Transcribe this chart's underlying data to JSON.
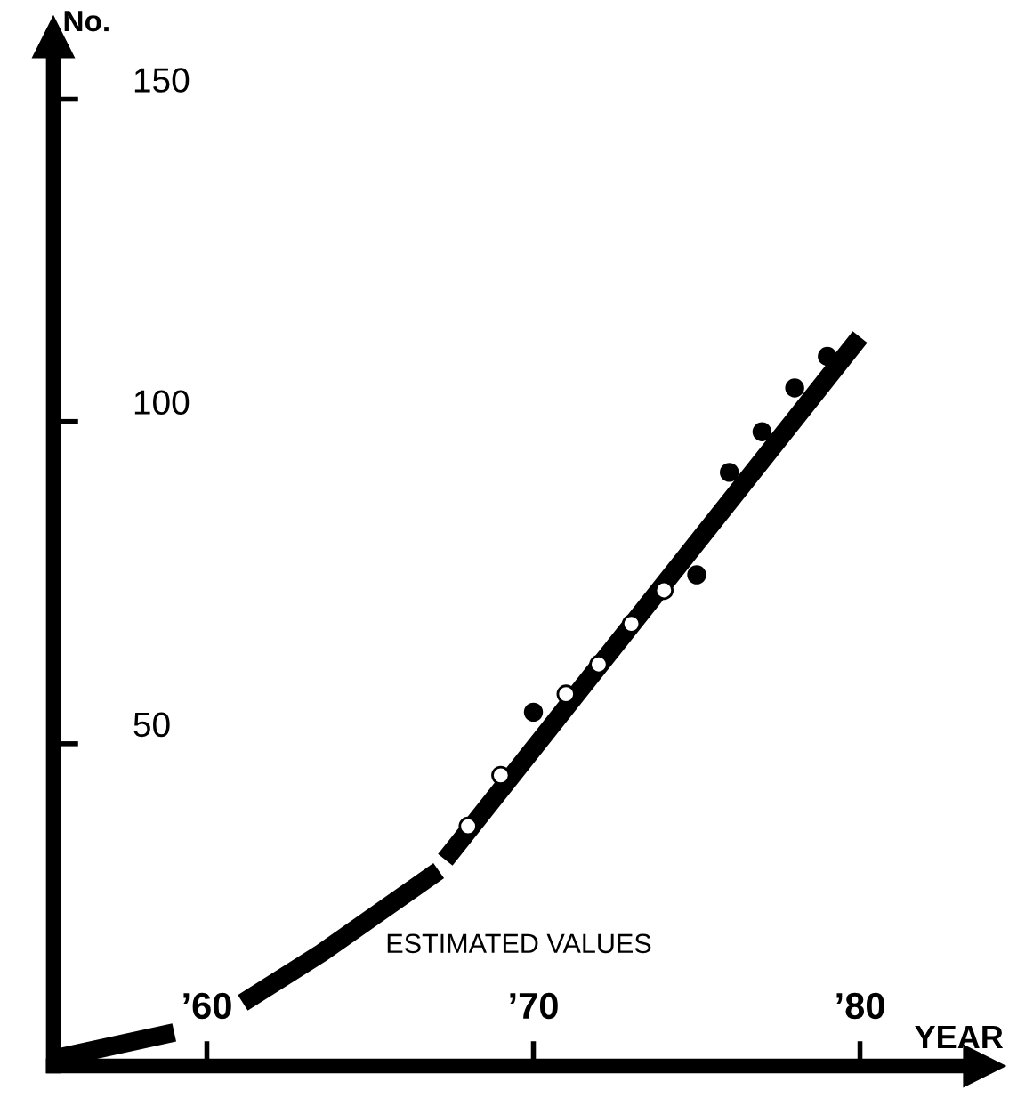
{
  "chart_data": {
    "type": "line",
    "xlabel": "YEAR",
    "ylabel": "No.",
    "xlim": [
      55.3,
      83.8
    ],
    "ylim": [
      0,
      159.6
    ],
    "xticks": [
      {
        "value": 60,
        "label": "’60"
      },
      {
        "value": 70,
        "label": "’70"
      },
      {
        "value": 80,
        "label": "’80"
      }
    ],
    "yticks": [
      50,
      100,
      150
    ],
    "series": [
      {
        "color": "#000000",
        "x": [
          55.3,
          59.0,
          null,
          61.1,
          63.5,
          67.1,
          null,
          67.3,
          80.0
        ],
        "values": [
          1.1,
          5.2,
          null,
          9.8,
          17.5,
          30.3,
          null,
          32.0,
          113.1
        ]
      },
      {
        "type": "scatter",
        "color": "#000000",
        "marker": "circle",
        "x": [
          70,
          75,
          76,
          77,
          78,
          79
        ],
        "values": [
          54.9,
          76.2,
          92.1,
          98.4,
          105.2,
          110.1
        ]
      },
      {
        "type": "scatter",
        "color": "#ffffff",
        "marker": "circle",
        "x": [
          68,
          69,
          71,
          72,
          73,
          74
        ],
        "values": [
          37.2,
          45.1,
          57.7,
          62.3,
          68.6,
          73.8
        ]
      }
    ],
    "annotations": [
      "ESTIMATED VALUES"
    ],
    "grid": false,
    "legend": false
  }
}
